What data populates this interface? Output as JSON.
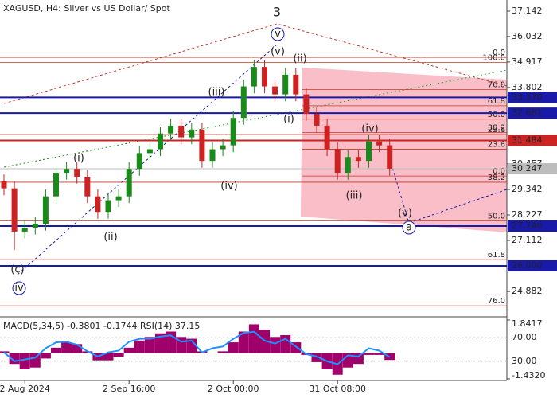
{
  "chart_data": {
    "type": "candlestick",
    "title": "XAGUSD, H4:  Silver vs US Dollar/ Spot",
    "categories": [
      null,
      null,
      "2 Aug 2024",
      null,
      null,
      null,
      null,
      null,
      null,
      null,
      null,
      null,
      "2 Sep 16:00",
      null,
      null,
      null,
      null,
      null,
      null,
      null,
      null,
      null,
      "2 Oct 00:00",
      null,
      null,
      null,
      null,
      null,
      null,
      null,
      null,
      null,
      "31 Oct 08:00",
      null,
      null,
      null,
      null,
      null
    ],
    "open": [
      29.7,
      29.39,
      27.5,
      27.67,
      27.84,
      29.04,
      30.07,
      30.24,
      29.9,
      29.04,
      28.36,
      28.87,
      29.04,
      30.24,
      30.93,
      31.1,
      31.79,
      32.13,
      31.62,
      31.96,
      30.59,
      31.1,
      31.27,
      32.47,
      33.85,
      34.7,
      33.85,
      33.5,
      34.36,
      33.5,
      32.65,
      32.13,
      31.1,
      30.07,
      30.76,
      30.59,
      31.44,
      31.27
    ],
    "high": [
      30.0,
      29.69,
      27.97,
      28.14,
      29.34,
      30.37,
      30.54,
      30.54,
      30.2,
      29.34,
      29.17,
      29.34,
      30.54,
      31.23,
      31.4,
      32.09,
      32.43,
      32.43,
      32.26,
      32.26,
      31.4,
      31.57,
      32.77,
      34.15,
      35.0,
      35.0,
      34.15,
      34.66,
      34.66,
      33.8,
      32.95,
      32.43,
      31.4,
      31.06,
      31.06,
      31.74,
      31.74,
      31.57
    ],
    "low": [
      29.09,
      26.7,
      27.2,
      27.37,
      27.54,
      28.74,
      29.77,
      29.6,
      28.74,
      28.06,
      28.06,
      28.57,
      28.74,
      29.94,
      30.63,
      30.8,
      31.49,
      31.32,
      31.32,
      30.29,
      30.29,
      30.8,
      30.97,
      32.17,
      33.55,
      33.55,
      33.2,
      33.2,
      33.2,
      32.35,
      31.83,
      30.8,
      29.77,
      29.77,
      30.29,
      30.29,
      30.97,
      29.95
    ],
    "close": [
      29.39,
      27.5,
      27.67,
      27.84,
      29.04,
      30.07,
      30.24,
      29.9,
      29.04,
      28.36,
      28.87,
      29.04,
      30.24,
      30.93,
      31.1,
      31.79,
      32.13,
      31.62,
      31.96,
      30.59,
      31.1,
      31.27,
      32.47,
      33.85,
      34.7,
      33.85,
      33.5,
      34.36,
      33.5,
      32.65,
      32.13,
      31.1,
      30.07,
      30.76,
      30.59,
      31.44,
      31.27,
      30.25
    ],
    "up_color": "#1a8a1a",
    "down_color": "#cc2222",
    "ylim": [
      23.77,
      37.63
    ],
    "yticks": [
      37.142,
      36.032,
      34.917,
      33.802,
      30.457,
      29.342,
      28.227,
      27.112,
      24.882
    ],
    "levels": [
      {
        "value": 33.37,
        "label": "33.370",
        "color": "#1a1aaa"
      },
      {
        "value": 32.681,
        "label": "32.681",
        "color": "#1a1aaa"
      },
      {
        "value": 31.484,
        "label": "31.484",
        "color": "#cc2222"
      },
      {
        "value": 30.247,
        "label": "30.247",
        "color": "#bdbdbd"
      },
      {
        "value": 27.74,
        "label": "27.740",
        "color": "#1a1aaa"
      },
      {
        "value": 26,
        "label": "26.000",
        "color": "#1a1aaa"
      }
    ],
    "fib_sets": [
      {
        "price_0": 29.93,
        "price_100": 34.9,
        "color": "#c0392b",
        "levels": [
          {
            "value": 100,
            "label": "100.0"
          },
          {
            "value": 76,
            "label": "76.0"
          },
          {
            "value": 61.8,
            "label": "61.8"
          },
          {
            "value": 50,
            "label": "50.0"
          },
          {
            "value": 38.2,
            "label": "38.2"
          },
          {
            "value": 23.6,
            "label": "23.6"
          },
          {
            "value": 0,
            "label": "0.0"
          }
        ]
      },
      {
        "price_0": 35.12,
        "price_100": 20.82,
        "color": "#c0392b",
        "levels": [
          {
            "value": 0,
            "label": "0.0"
          },
          {
            "value": 23.6,
            "label": "23.6"
          },
          {
            "value": 38.2,
            "label": "38.2"
          },
          {
            "value": 50,
            "label": "50.0"
          },
          {
            "value": 61.8,
            "label": "61.8"
          },
          {
            "value": 76,
            "label": "76.0"
          }
        ]
      }
    ],
    "annotations": [
      {
        "text": "3",
        "color": "#c0392b"
      },
      {
        "text": "v",
        "color": "#1a1aaa",
        "circle": true
      },
      {
        "text": "(v)",
        "color": "#c0392b"
      },
      {
        "text": "(ii)",
        "color": "#c0392b"
      },
      {
        "text": "(iii)",
        "color": "#c0392b"
      },
      {
        "text": "(i)",
        "color": "#c0392b"
      },
      {
        "text": "(iv)",
        "color": "#c0392b"
      },
      {
        "text": "(i)",
        "color": "#c0392b"
      },
      {
        "text": "(iv)",
        "color": "#c0392b"
      },
      {
        "text": "(iii)",
        "color": "#c0392b"
      },
      {
        "text": "(ii)",
        "color": "#c0392b"
      },
      {
        "text": "(v)",
        "color": "#c0392b"
      },
      {
        "text": "a",
        "color": "#1a1aaa",
        "circle": true
      },
      {
        "text": "(c)",
        "color": "#c0392b"
      },
      {
        "text": "iv",
        "color": "#1a1aaa",
        "circle": true
      }
    ],
    "indicator": {
      "label": "MACD(5,34,5) -0.3801 -0.1744 RSI(14) 37.15",
      "macd": {
        "color": "#a0006a",
        "lim": [
          -1.432,
          1.8417
        ],
        "ticks": [
          {
            "value": 1.8417,
            "label": "1.8417"
          },
          {
            "value": -1.432,
            "label": "-1.4320"
          }
        ],
        "values": [
          0.1,
          -0.6,
          -0.9,
          -0.8,
          -0.3,
          0.3,
          0.6,
          0.5,
          0.1,
          -0.4,
          -0.4,
          -0.2,
          0.3,
          0.7,
          0.9,
          1.1,
          1.2,
          0.9,
          0.8,
          0.1,
          0.0,
          0.1,
          0.6,
          1.2,
          1.6,
          1.3,
          0.9,
          1.0,
          0.6,
          -0.1,
          -0.5,
          -0.9,
          -1.2,
          -0.8,
          -0.6,
          -0.1,
          -0.1,
          -0.38
        ]
      },
      "rsi": {
        "color": "#1e90ff",
        "lim": [
          0,
          100
        ],
        "ticks": [
          {
            "value": 70,
            "label": "70.00"
          },
          {
            "value": 30,
            "label": "30.00"
          }
        ],
        "values": [
          45,
          30,
          33,
          36,
          52,
          62,
          63,
          58,
          47,
          38,
          45,
          48,
          63,
          68,
          68,
          72,
          74,
          63,
          65,
          45,
          52,
          55,
          68,
          78,
          80,
          65,
          60,
          68,
          55,
          42,
          38,
          30,
          25,
          40,
          38,
          52,
          48,
          37
        ]
      }
    }
  }
}
